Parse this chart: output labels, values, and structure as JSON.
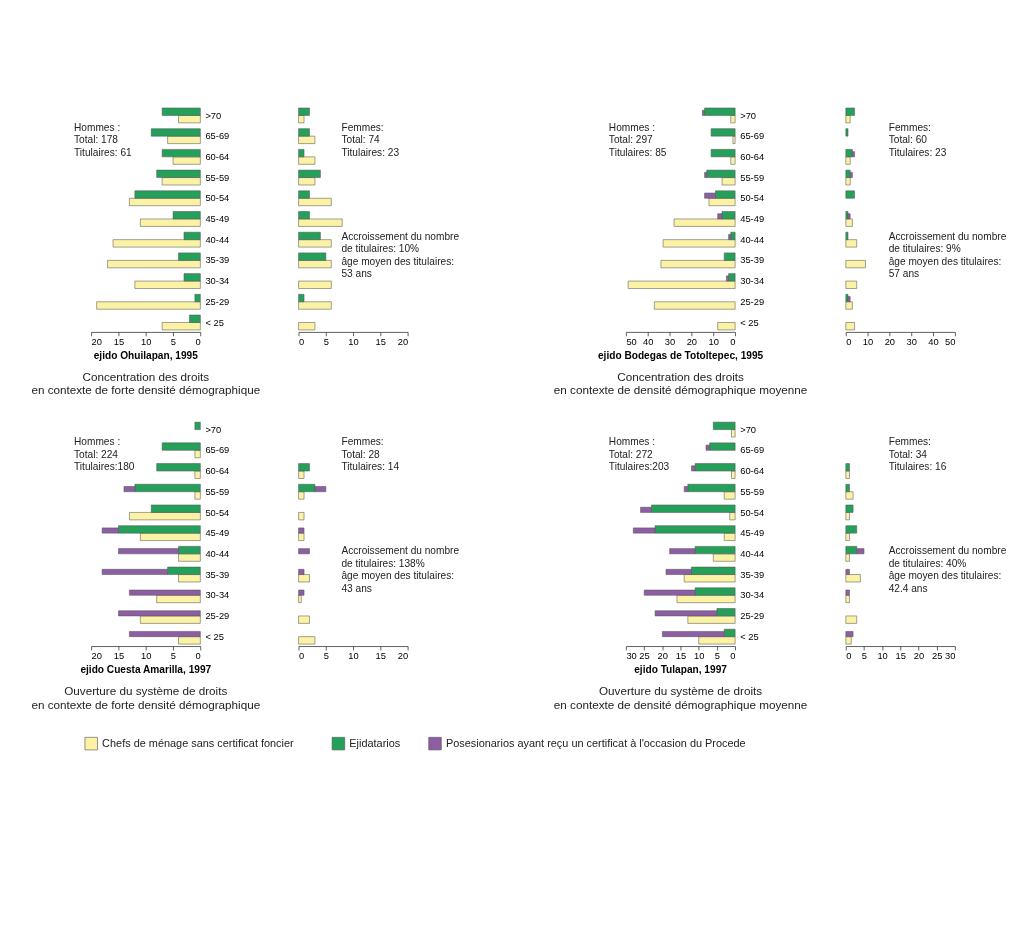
{
  "chart_data": [
    {
      "type": "bar",
      "orientation": "horizontal",
      "title": "ejido Ohuilapan, 1995",
      "subtitle": "Concentration des droits\nen contexte de forte densité démographique",
      "legend": "bottom",
      "categories": [
        ">70",
        "65-69",
        "60-64",
        "55-59",
        "50-54",
        "45-49",
        "40-44",
        "35-39",
        "30-34",
        "25-29",
        "< 25"
      ],
      "xlim": [
        20,
        0
      ],
      "xticks": [
        20,
        15,
        10,
        5,
        0
      ],
      "series": [
        {
          "name": "Chefs de ménage sans certificat foncier",
          "color": "#fcf2a6",
          "values": [
            4,
            6,
            5,
            7,
            13,
            11,
            16,
            17,
            12,
            19,
            7
          ]
        },
        {
          "name": "Ejidatarios",
          "color": "#25a05b",
          "values": [
            7,
            9,
            7,
            8,
            12,
            5,
            3,
            4,
            3,
            1,
            2
          ]
        }
      ],
      "annotations": [
        "Hommes :",
        "Total: 178",
        "Titulaires: 61"
      ]
    },
    {
      "type": "bar",
      "orientation": "horizontal",
      "tick_labels": "x",
      "categories": [
        ">70",
        "65-69",
        "60-64",
        "55-59",
        "50-54",
        "45-49",
        "40-44",
        "35-39",
        "30-34",
        "25-29",
        "< 25"
      ],
      "xlim": [
        0,
        20
      ],
      "xticks": [
        0,
        5,
        10,
        15,
        20
      ],
      "series": [
        {
          "name": "Chefs de ménage sans certificat foncier",
          "color": "#fcf2a6",
          "values": [
            1,
            3,
            3,
            3,
            6,
            8,
            6,
            6,
            6,
            6,
            3
          ]
        },
        {
          "name": "Ejidatarios",
          "color": "#25a05b",
          "values": [
            2,
            2,
            1,
            4,
            2,
            2,
            4,
            5,
            null,
            1,
            null
          ]
        }
      ],
      "annotations": [
        "Femmes:",
        "Total: 74",
        "Titulaires: 23",
        "Accroissement du nombre",
        "de titulaires: 10%",
        "âge moyen des titulaires:",
        "53 ans"
      ]
    },
    {
      "type": "bar",
      "orientation": "horizontal",
      "title": "ejido Bodegas de Totoltepec, 1995",
      "subtitle": "Concentration des droits\nen contexte de densité démographique moyenne",
      "categories": [
        ">70",
        "65-69",
        "60-64",
        "55-59",
        "50-54",
        "45-49",
        "40-44",
        "35-39",
        "30-34",
        "25-29",
        "< 25"
      ],
      "xlim": [
        50,
        0
      ],
      "xticks": [
        50,
        40,
        30,
        20,
        10,
        0
      ],
      "series": [
        {
          "name": "Chefs de ménage sans certificat foncier",
          "color": "#fcf2a6",
          "values": [
            2,
            1,
            2,
            6,
            12,
            28,
            33,
            34,
            49,
            37,
            8
          ]
        },
        {
          "name": "Ejidatarios",
          "color": "#25a05b",
          "values": [
            14,
            11,
            11,
            13,
            9,
            6,
            2,
            5,
            3,
            null,
            null
          ]
        },
        {
          "name": "Posesionarios ayant reçu un certificat à l'occasion du Procede",
          "color": "#8d5ea3",
          "values": [
            1,
            null,
            null,
            1,
            5,
            2,
            1,
            null,
            1,
            null,
            null
          ],
          "base": [
            14,
            null,
            null,
            13,
            9,
            6,
            2,
            null,
            3,
            null,
            null
          ]
        }
      ],
      "annotations": [
        "Hommes :",
        "Total: 297",
        "Titulaires: 85"
      ]
    },
    {
      "type": "bar",
      "orientation": "horizontal",
      "tick_labels": "x",
      "categories": [
        ">70",
        "65-69",
        "60-64",
        "55-59",
        "50-54",
        "45-49",
        "40-44",
        "35-39",
        "30-34",
        "25-29",
        "< 25"
      ],
      "xlim": [
        0,
        50
      ],
      "xticks": [
        0,
        10,
        20,
        30,
        40,
        50
      ],
      "series": [
        {
          "name": "Chefs de ménage sans certificat foncier",
          "color": "#fcf2a6",
          "values": [
            2,
            null,
            2,
            2,
            null,
            3,
            5,
            9,
            5,
            3,
            4
          ]
        },
        {
          "name": "Ejidatarios",
          "color": "#25a05b",
          "values": [
            4,
            1,
            3,
            2,
            4,
            1,
            1,
            null,
            null,
            1,
            null
          ]
        },
        {
          "name": "Posesionarios ayant reçu un certificat à l'occasion du Procede",
          "color": "#8d5ea3",
          "values": [
            null,
            null,
            1,
            1,
            null,
            1,
            null,
            null,
            null,
            1,
            null
          ],
          "base": [
            null,
            null,
            3,
            2,
            null,
            1,
            null,
            null,
            null,
            1,
            null
          ]
        }
      ],
      "annotations": [
        "Femmes:",
        "Total: 60",
        "Titulaires: 23",
        "Accroissement du nombre",
        "de titulaires: 9%",
        "âge moyen des titulaires:",
        "57 ans"
      ]
    },
    {
      "type": "bar",
      "orientation": "horizontal",
      "title": "ejido Cuesta Amarilla, 1997",
      "subtitle": "Ouverture du système de droits\nen contexte de forte densité démographique",
      "categories": [
        ">70",
        "65-69",
        "60-64",
        "55-59",
        "50-54",
        "45-49",
        "40-44",
        "35-39",
        "30-34",
        "25-29",
        "< 25"
      ],
      "xlim": [
        20,
        0
      ],
      "xticks": [
        20,
        15,
        10,
        5,
        0
      ],
      "series": [
        {
          "name": "Chefs de ménage sans certificat foncier",
          "color": "#fcf2a6",
          "values": [
            null,
            1,
            1,
            1,
            13,
            11,
            4,
            4,
            8,
            11,
            4
          ]
        },
        {
          "name": "Ejidatarios",
          "color": "#25a05b",
          "values": [
            1,
            7,
            8,
            12,
            9,
            15,
            4,
            6,
            null,
            null,
            null
          ]
        },
        {
          "name": "Posesionarios ayant reçu un certificat à l'occasion du Procede",
          "color": "#8d5ea3",
          "values": [
            null,
            null,
            null,
            2,
            null,
            3,
            11,
            12,
            13,
            15,
            13
          ],
          "base": [
            null,
            null,
            null,
            12,
            null,
            15,
            4,
            6,
            0,
            0,
            0
          ]
        }
      ],
      "annotations": [
        "Hommes :",
        "Total: 224",
        "Titulaires:180"
      ]
    },
    {
      "type": "bar",
      "orientation": "horizontal",
      "tick_labels": "x",
      "categories": [
        ">70",
        "65-69",
        "60-64",
        "55-59",
        "50-54",
        "45-49",
        "40-44",
        "35-39",
        "30-34",
        "25-29",
        "< 25"
      ],
      "xlim": [
        0,
        20
      ],
      "xticks": [
        0,
        5,
        10,
        15,
        20
      ],
      "series": [
        {
          "name": "Chefs de ménage sans certificat foncier",
          "color": "#fcf2a6",
          "values": [
            null,
            null,
            1,
            1,
            1,
            1,
            null,
            2,
            0.5,
            2,
            3
          ]
        },
        {
          "name": "Ejidatarios",
          "color": "#25a05b",
          "values": [
            null,
            null,
            2,
            3,
            null,
            null,
            null,
            null,
            null,
            null,
            null
          ]
        },
        {
          "name": "Posesionarios ayant reçu un certificat à l'occasion du Procede",
          "color": "#8d5ea3",
          "values": [
            null,
            null,
            null,
            2,
            null,
            1,
            2,
            1,
            1,
            null,
            null
          ],
          "base": [
            null,
            null,
            null,
            3,
            null,
            0,
            0,
            0,
            0,
            null,
            null
          ]
        }
      ],
      "annotations": [
        "Femmes:",
        "Total: 28",
        "Titulaires: 14",
        "Accroissement du nombre",
        "de titulaires: 138%",
        "âge moyen des titulaires:",
        "43 ans"
      ]
    },
    {
      "type": "bar",
      "orientation": "horizontal",
      "title": "ejido Tulapan, 1997",
      "subtitle": "Ouverture du système de droits\nen contexte de densité démographique moyenne",
      "categories": [
        ">70",
        "65-69",
        "60-64",
        "55-59",
        "50-54",
        "45-49",
        "40-44",
        "35-39",
        "30-34",
        "25-29",
        "< 25"
      ],
      "xlim": [
        30,
        0
      ],
      "xticks": [
        30,
        25,
        20,
        15,
        10,
        5,
        0
      ],
      "series": [
        {
          "name": "Chefs de ménage sans certificat foncier",
          "color": "#fcf2a6",
          "values": [
            1,
            null,
            1,
            3,
            1.5,
            3,
            6,
            14,
            16,
            13,
            10
          ]
        },
        {
          "name": "Ejidatarios",
          "color": "#25a05b",
          "values": [
            6,
            7,
            11,
            13,
            23,
            22,
            11,
            12,
            11,
            5,
            3
          ]
        },
        {
          "name": "Posesionarios ayant reçu un certificat à l'occasion du Procede",
          "color": "#8d5ea3",
          "values": [
            null,
            1,
            1,
            1,
            3,
            6,
            7,
            7,
            14,
            17,
            17
          ],
          "base": [
            null,
            7,
            11,
            13,
            23,
            22,
            11,
            12,
            11,
            5,
            3
          ]
        }
      ],
      "annotations": [
        "Hommes :",
        "Total: 272",
        "Titulaires:203"
      ]
    },
    {
      "type": "bar",
      "orientation": "horizontal",
      "tick_labels": "x",
      "categories": [
        ">70",
        "65-69",
        "60-64",
        "55-59",
        "50-54",
        "45-49",
        "40-44",
        "35-39",
        "30-34",
        "25-29",
        "< 25"
      ],
      "xlim": [
        0,
        30
      ],
      "xticks": [
        0,
        5,
        10,
        15,
        20,
        25,
        30
      ],
      "series": [
        {
          "name": "Chefs de ménage sans certificat foncier",
          "color": "#fcf2a6",
          "values": [
            null,
            null,
            1,
            2,
            1,
            1,
            1,
            4,
            1,
            3,
            1.5
          ]
        },
        {
          "name": "Ejidatarios",
          "color": "#25a05b",
          "values": [
            null,
            null,
            1,
            1,
            2,
            3,
            3,
            null,
            null,
            null,
            null
          ]
        },
        {
          "name": "Posesionarios ayant reçu un certificat à l'occasion du Procede",
          "color": "#8d5ea3",
          "values": [
            null,
            null,
            null,
            null,
            null,
            null,
            2,
            1,
            1,
            null,
            2
          ],
          "base": [
            null,
            null,
            null,
            null,
            null,
            null,
            3,
            0,
            0,
            null,
            0
          ]
        }
      ],
      "annotations": [
        "Femmes:",
        "Total: 34",
        "Titulaires: 16",
        "Accroissement du nombre",
        "de titulaires: 40%",
        "âge moyen des titulaires:",
        "42.4 ans"
      ]
    }
  ]
}
